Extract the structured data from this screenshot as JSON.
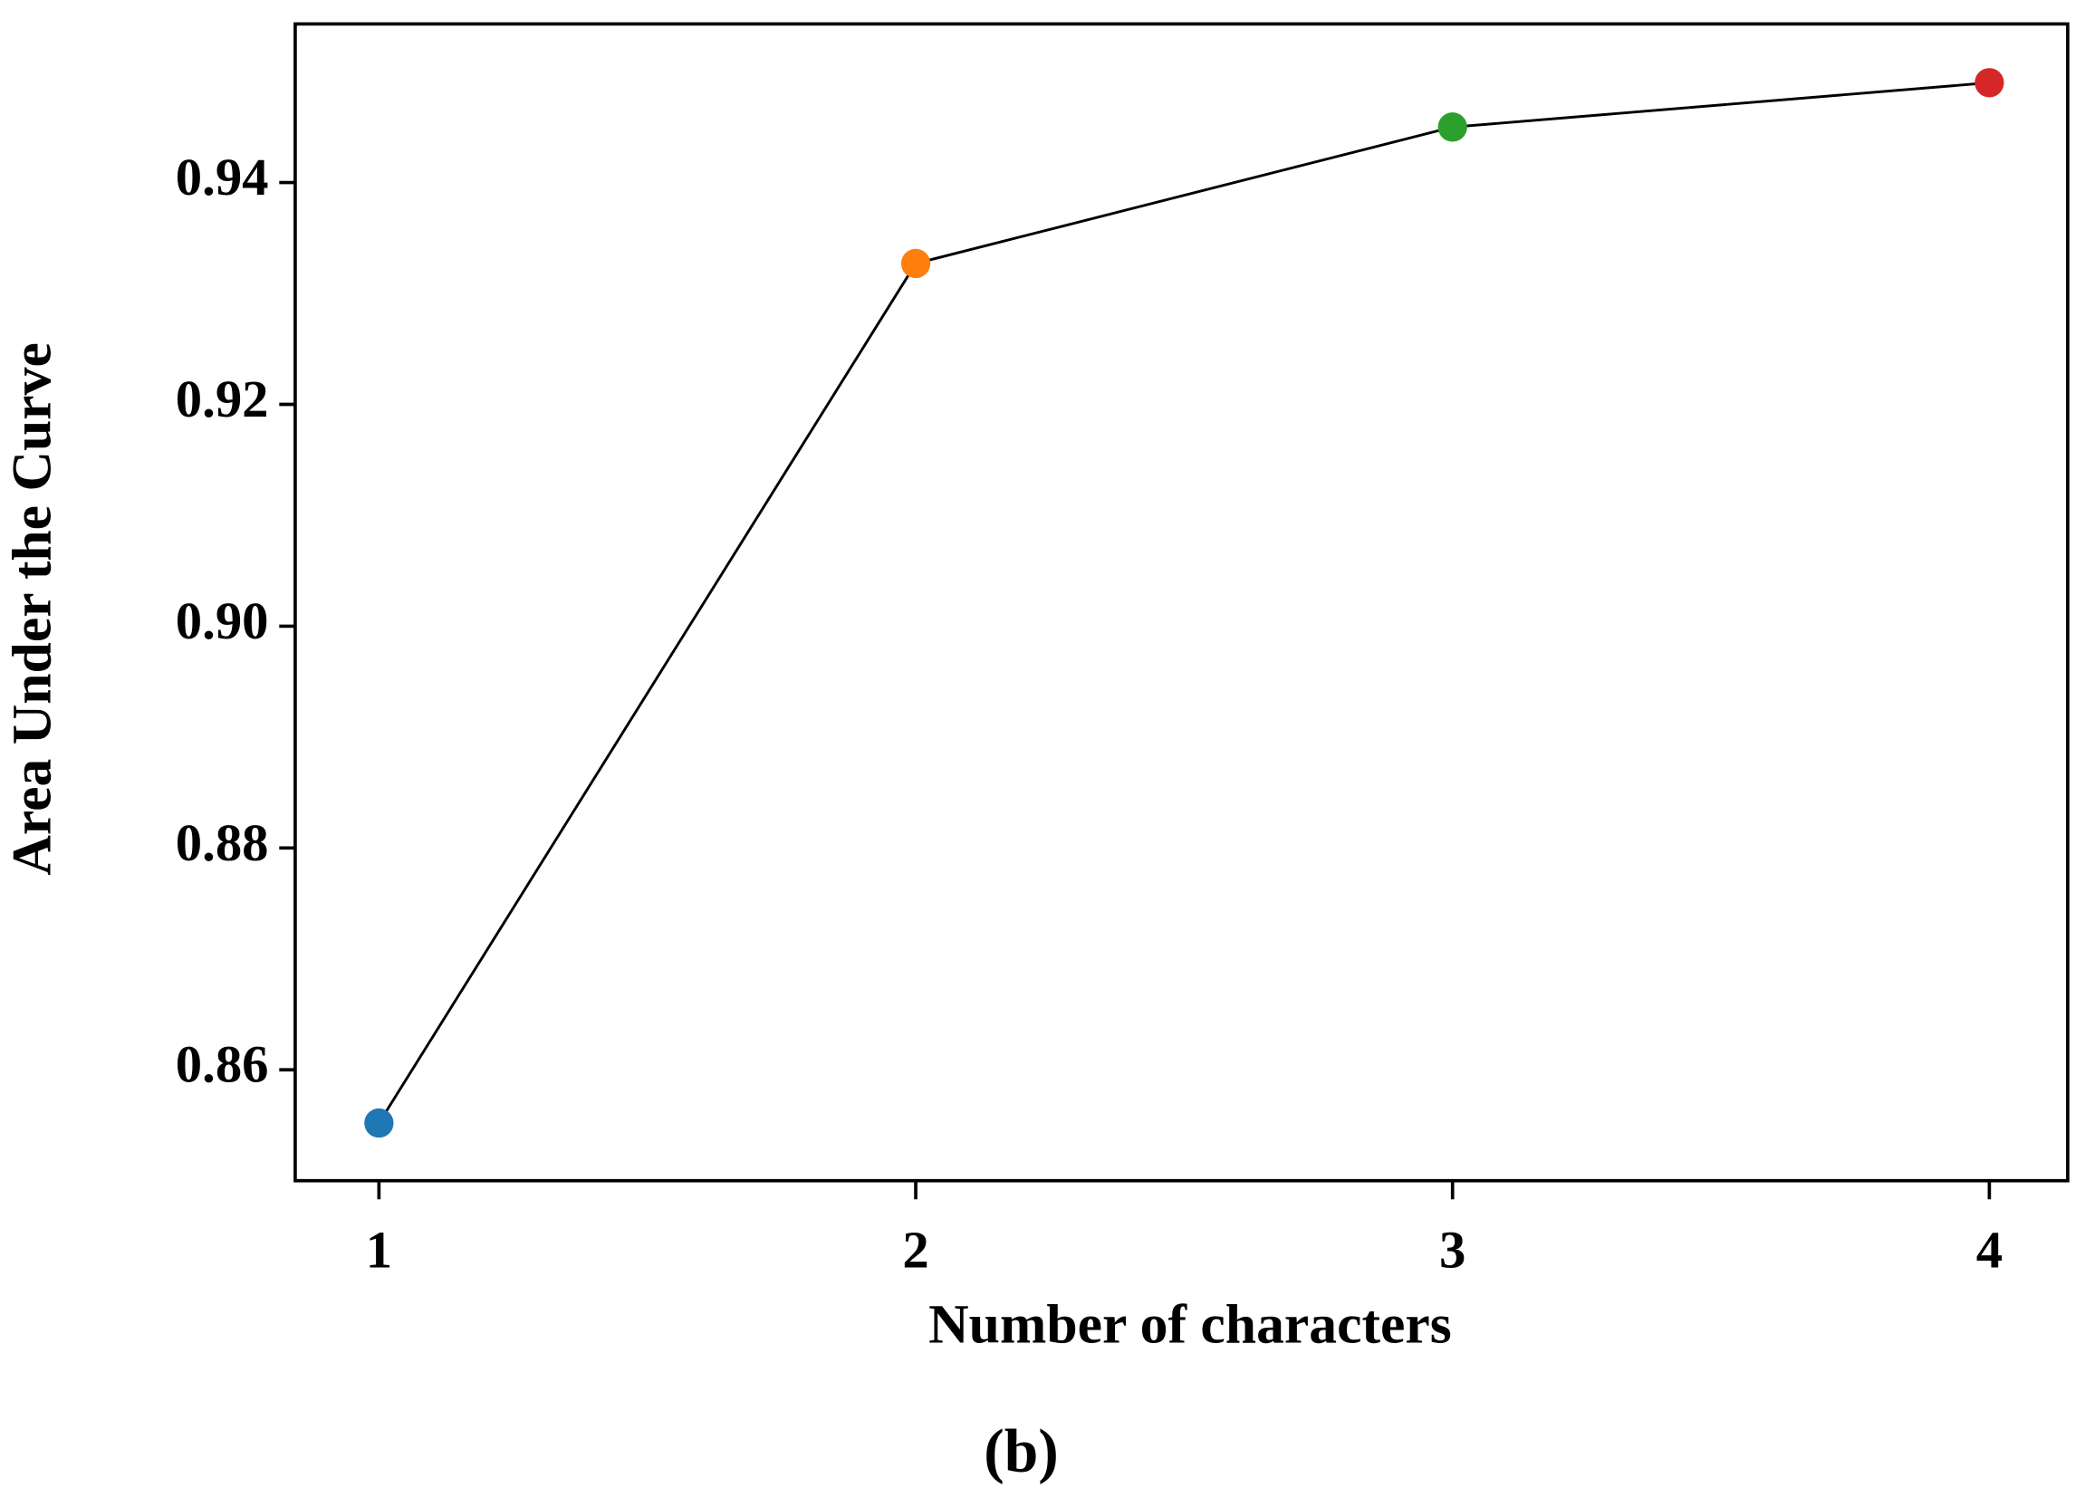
{
  "chart_data": {
    "type": "line",
    "xlabel": "Number of characters",
    "ylabel": "Area Under the Curve",
    "caption": "(b)",
    "x": [
      1,
      2,
      3,
      4
    ],
    "series": [
      {
        "color": "#000000",
        "values": [
          0.8552,
          0.9327,
          0.945,
          0.949
        ],
        "point_colors": [
          "#1f77b4",
          "#ff7f0e",
          "#2ca02c",
          "#d62728"
        ]
      }
    ],
    "xlim": [
      0.844,
      4.146
    ],
    "xticks": [
      1,
      2,
      3,
      4
    ],
    "ylim": [
      0.85,
      0.9543
    ],
    "yticks": [
      {
        "value": 0.86,
        "label": "0.86"
      },
      {
        "value": 0.88,
        "label": "0.88"
      },
      {
        "value": 0.9,
        "label": "0.90"
      },
      {
        "value": 0.92,
        "label": "0.92"
      },
      {
        "value": 0.94,
        "label": "0.94"
      }
    ],
    "grid": false
  }
}
